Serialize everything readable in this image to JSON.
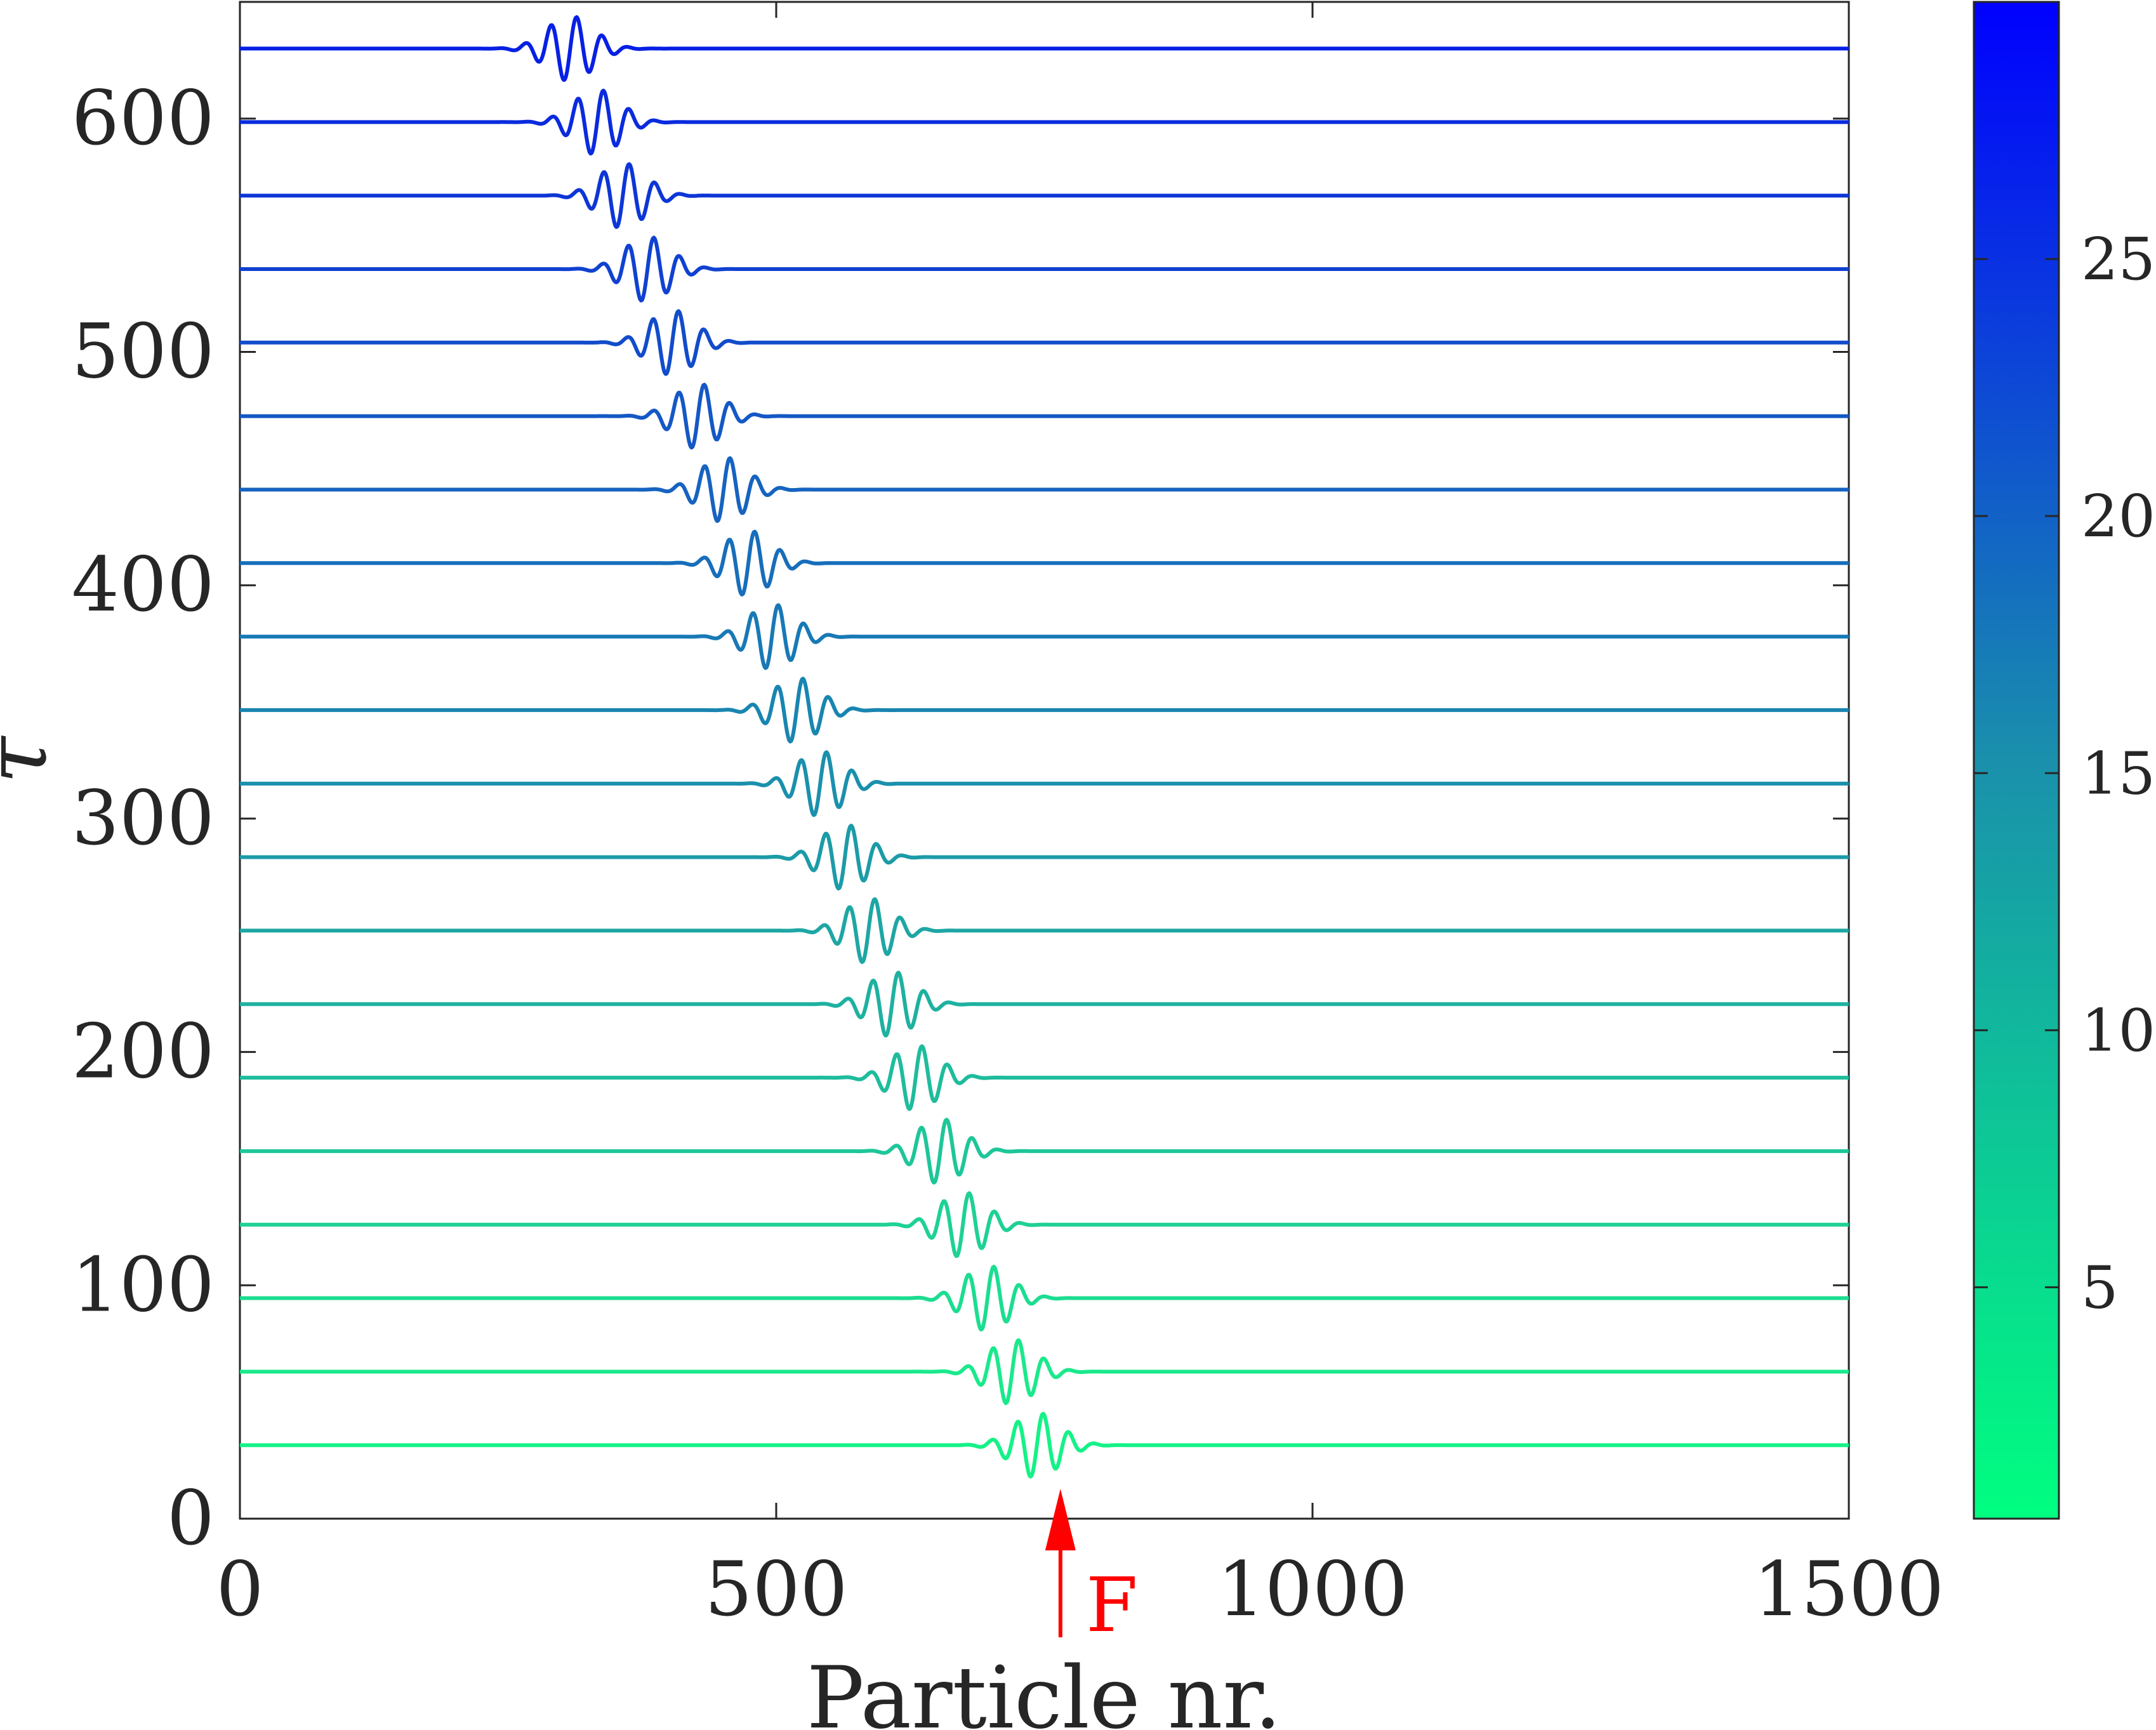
{
  "chart_data": {
    "type": "line",
    "subtype": "waterfall",
    "xlabel": "Particle nr.",
    "ylabel": "τ",
    "xlim": [
      0,
      1500
    ],
    "ylim": [
      0,
      650
    ],
    "x_ticks": [
      "0",
      "500",
      "1000",
      "1500"
    ],
    "y_ticks": [
      "0",
      "100",
      "200",
      "300",
      "400",
      "500",
      "600"
    ],
    "grid": false,
    "series": [
      {
        "baseline": 31.5,
        "center": 743,
        "color": "#14f287"
      },
      {
        "baseline": 63.0,
        "center": 720,
        "color": "#1ae98c"
      },
      {
        "baseline": 94.5,
        "center": 697,
        "color": "#1cdd90"
      },
      {
        "baseline": 126.0,
        "center": 674,
        "color": "#1ed194"
      },
      {
        "baseline": 157.5,
        "center": 653,
        "color": "#1ec699"
      },
      {
        "baseline": 189.0,
        "center": 630,
        "color": "#1ebc9c"
      },
      {
        "baseline": 220.5,
        "center": 608,
        "color": "#1eb1a0"
      },
      {
        "baseline": 252.0,
        "center": 586,
        "color": "#1ea6a4"
      },
      {
        "baseline": 283.5,
        "center": 564,
        "color": "#1c9ba8"
      },
      {
        "baseline": 315.0,
        "center": 541,
        "color": "#1a90ac"
      },
      {
        "baseline": 346.5,
        "center": 519,
        "color": "#1985b1"
      },
      {
        "baseline": 378.0,
        "center": 496,
        "color": "#1879b6"
      },
      {
        "baseline": 409.5,
        "center": 474,
        "color": "#176ebb"
      },
      {
        "baseline": 441.0,
        "center": 451,
        "color": "#1663c0"
      },
      {
        "baseline": 472.5,
        "center": 427,
        "color": "#1458c6"
      },
      {
        "baseline": 504.0,
        "center": 403,
        "color": "#124ccb"
      },
      {
        "baseline": 535.5,
        "center": 380,
        "color": "#1041d1"
      },
      {
        "baseline": 567.0,
        "center": 357,
        "color": "#0d36d7"
      },
      {
        "baseline": 598.5,
        "center": 333,
        "color": "#0a2bdd"
      },
      {
        "baseline": 630.0,
        "center": 308,
        "color": "#0720e4"
      }
    ],
    "wave_amplitude": 14,
    "wave_wavelength": 24,
    "wave_width": 22,
    "colorbar": {
      "ticks": [
        "5",
        "10",
        "15",
        "20",
        "25"
      ],
      "tick_values": [
        5,
        10,
        15,
        20,
        25
      ],
      "range": [
        0.5,
        30
      ],
      "color_low": "#00ff80",
      "color_mid": "#1a90ac",
      "color_high": "#0000ff"
    },
    "annotations": [
      {
        "text": "F",
        "x": 765,
        "color": "#ff0000",
        "type": "force-arrow"
      }
    ]
  }
}
